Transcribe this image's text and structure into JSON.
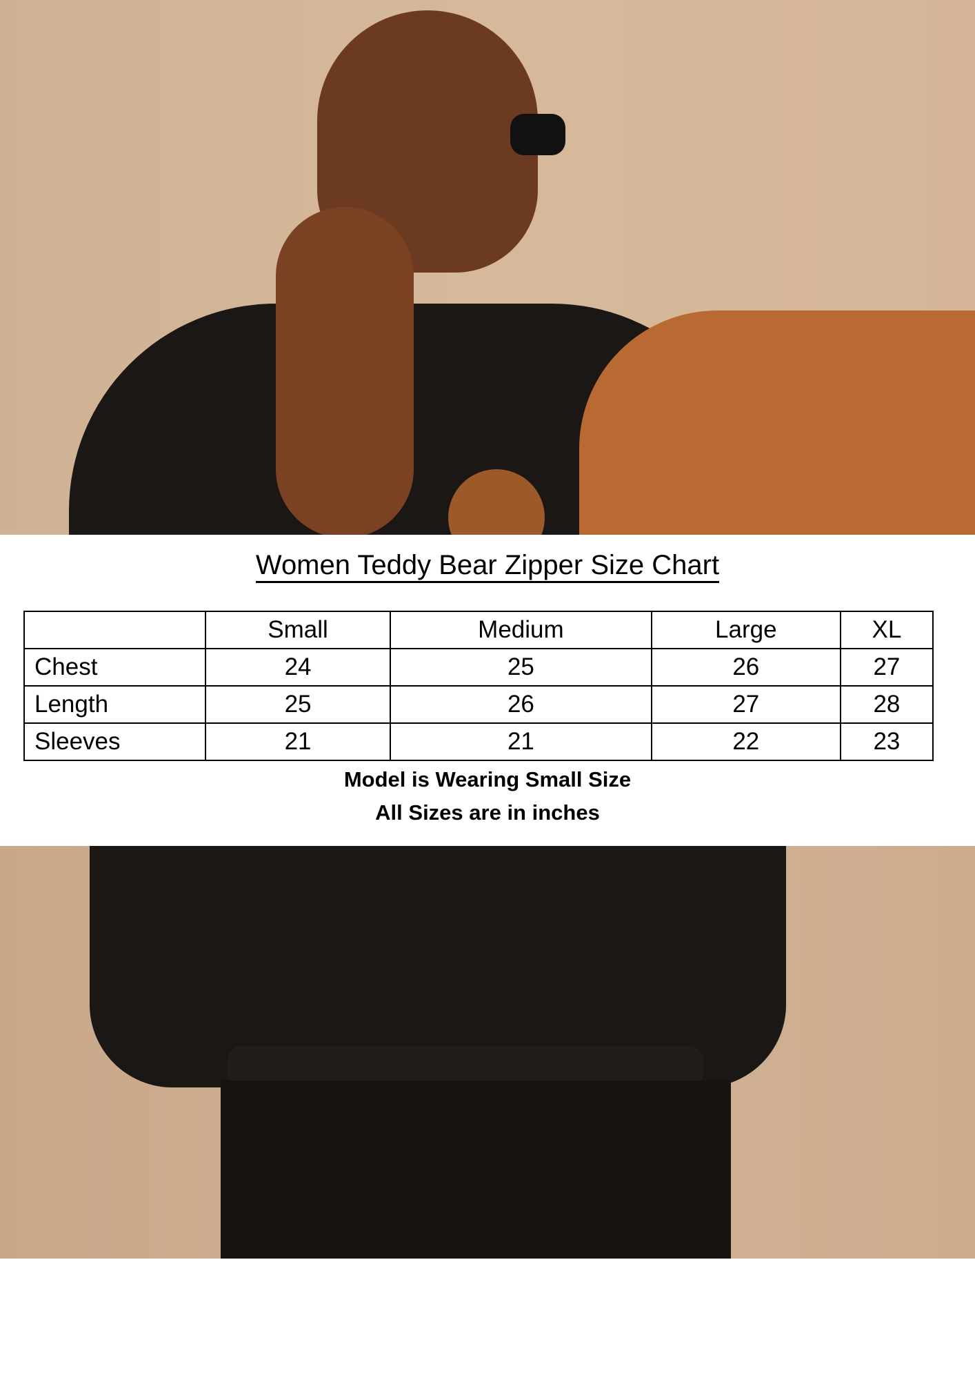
{
  "title": "Women Teddy Bear Zipper Size Chart",
  "table": {
    "columns": [
      "",
      "Small",
      "Medium",
      "Large",
      "XL"
    ],
    "rows": [
      {
        "label": "Chest",
        "values": [
          "24",
          "25",
          "26",
          "27"
        ]
      },
      {
        "label": "Length",
        "values": [
          "25",
          "26",
          "27",
          "28"
        ]
      },
      {
        "label": "Sleeves",
        "values": [
          "21",
          "21",
          "22",
          "23"
        ]
      }
    ]
  },
  "notes": [
    "Model is Wearing Small Size",
    "All Sizes are in inches"
  ],
  "colors": {
    "background": "#d4b597",
    "jacket": "#1a1614",
    "fleece": "#b86a32",
    "hair": "#6b3a20"
  }
}
